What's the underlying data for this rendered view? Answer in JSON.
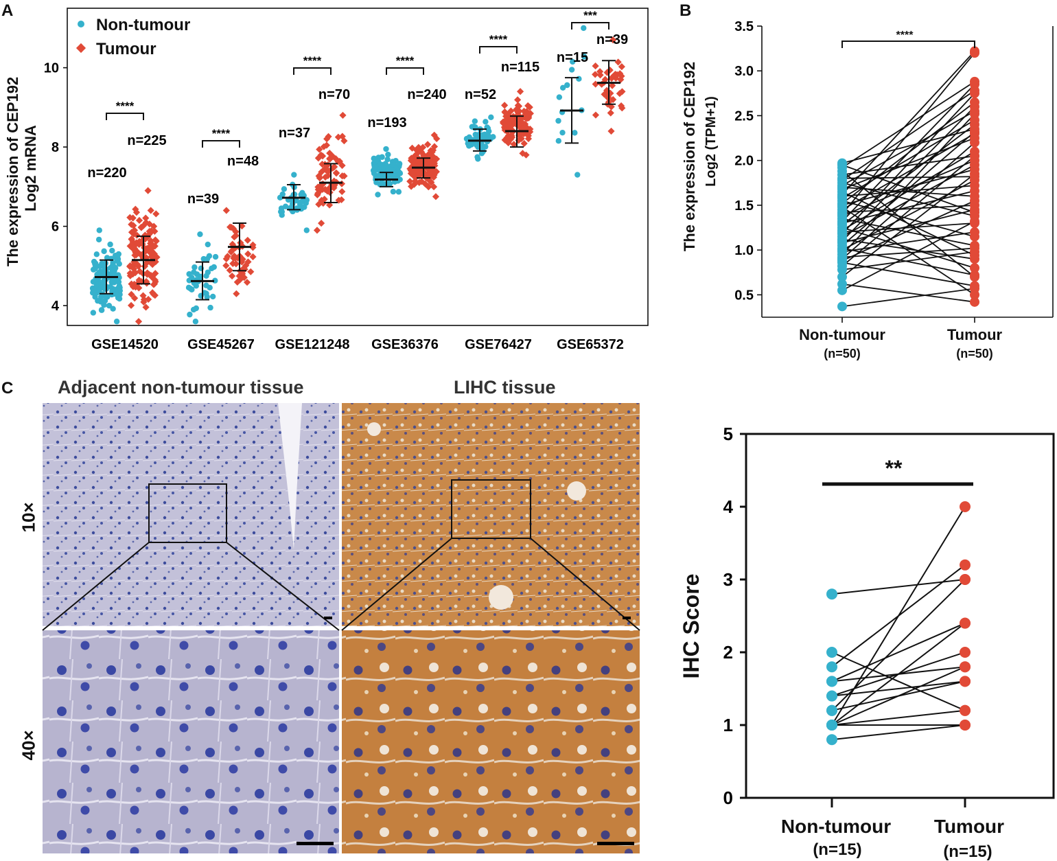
{
  "figure": {
    "panel_labels": {
      "a": "A",
      "b": "B",
      "c": "C"
    }
  },
  "colors": {
    "non_tumour": "#35b1cc",
    "tumour": "#e14a37",
    "ihc_blue_bg": "#bab9d3",
    "ihc_brown_bg": "#c88a4a",
    "ink": "#111111"
  },
  "chart_data": [
    {
      "id": "panel-a",
      "type": "scatter",
      "title": "",
      "ylabel_line1": "The expression of CEP192",
      "ylabel_line2": "Log2 mRNA",
      "xlabel": "",
      "ylim": [
        3.5,
        11.5
      ],
      "yticks": [
        4,
        6,
        8,
        10
      ],
      "legend": {
        "position": "top-left",
        "entries": [
          "Non-tumour",
          "Tumour"
        ]
      },
      "categories": [
        "GSE14520",
        "GSE45267",
        "GSE121248",
        "GSE36376",
        "GSE76427",
        "GSE65372"
      ],
      "series": [
        {
          "name": "Non-tumour",
          "marker": "circle",
          "n_labels": [
            "n=220",
            "n=39",
            "n=37",
            "n=193",
            "n=52",
            "n=15"
          ],
          "mean": [
            4.72,
            4.62,
            6.72,
            7.18,
            8.16,
            8.92
          ],
          "sd_low": [
            4.3,
            4.15,
            6.42,
            7.0,
            7.9,
            8.1
          ],
          "sd_high": [
            5.15,
            5.1,
            7.05,
            7.36,
            8.45,
            9.75
          ],
          "min": [
            3.6,
            3.6,
            5.9,
            6.8,
            7.7,
            7.3
          ],
          "max": [
            5.9,
            5.8,
            7.3,
            7.95,
            8.75,
            11.0
          ],
          "point_counts": [
            120,
            40,
            37,
            100,
            52,
            15
          ]
        },
        {
          "name": "Tumour",
          "marker": "diamond",
          "n_labels": [
            "n=225",
            "n=48",
            "n=70",
            "n=240",
            "n=115",
            "n=39"
          ],
          "mean": [
            5.15,
            5.48,
            7.1,
            7.48,
            8.4,
            9.62
          ],
          "sd_low": [
            4.55,
            4.88,
            6.6,
            7.22,
            8.0,
            9.08
          ],
          "sd_high": [
            5.75,
            6.08,
            7.58,
            7.72,
            8.78,
            10.18
          ],
          "min": [
            3.6,
            4.3,
            5.9,
            6.75,
            7.8,
            8.4
          ],
          "max": [
            6.9,
            6.4,
            8.8,
            8.3,
            9.4,
            10.7
          ],
          "point_counts": [
            140,
            48,
            70,
            120,
            115,
            39
          ]
        }
      ],
      "significance": [
        "****",
        "****",
        "****",
        "****",
        "****",
        "***"
      ]
    },
    {
      "id": "panel-b",
      "type": "line",
      "title": "",
      "ylabel_line1": "The expression of CEP192",
      "ylabel_line2": "Log2 (TPM+1)",
      "ylim": [
        0.25,
        3.5
      ],
      "yticks": [
        0.5,
        1.0,
        1.5,
        2.0,
        2.5,
        3.0,
        3.5
      ],
      "ytick_labels": [
        "0.5",
        "1.0",
        "1.5",
        "2.0",
        "2.5",
        "3.0",
        "3.5"
      ],
      "categories": [
        "Non-tumour",
        "Tumour"
      ],
      "category_n": [
        "(n=50)",
        "(n=50)"
      ],
      "significance": "****",
      "pairs": [
        [
          0.37,
          0.57
        ],
        [
          0.55,
          1.32
        ],
        [
          0.62,
          0.42
        ],
        [
          0.7,
          1.85
        ],
        [
          0.78,
          0.98
        ],
        [
          0.82,
          2.05
        ],
        [
          0.86,
          0.6
        ],
        [
          0.88,
          1.55
        ],
        [
          0.9,
          2.2
        ],
        [
          0.92,
          1.02
        ],
        [
          0.95,
          2.52
        ],
        [
          0.98,
          1.2
        ],
        [
          1.0,
          1.78
        ],
        [
          1.02,
          0.72
        ],
        [
          1.05,
          2.32
        ],
        [
          1.08,
          1.45
        ],
        [
          1.1,
          2.6
        ],
        [
          1.12,
          0.9
        ],
        [
          1.15,
          1.95
        ],
        [
          1.18,
          2.75
        ],
        [
          1.2,
          1.3
        ],
        [
          1.22,
          2.1
        ],
        [
          1.25,
          0.8
        ],
        [
          1.28,
          2.4
        ],
        [
          1.3,
          1.66
        ],
        [
          1.32,
          2.85
        ],
        [
          1.35,
          1.05
        ],
        [
          1.38,
          2.0
        ],
        [
          1.4,
          3.2
        ],
        [
          1.42,
          1.5
        ],
        [
          1.45,
          2.3
        ],
        [
          1.48,
          0.5
        ],
        [
          1.5,
          1.9
        ],
        [
          1.52,
          2.65
        ],
        [
          1.55,
          1.15
        ],
        [
          1.58,
          2.45
        ],
        [
          1.6,
          1.72
        ],
        [
          1.62,
          3.22
        ],
        [
          1.65,
          0.94
        ],
        [
          1.68,
          2.25
        ],
        [
          1.7,
          1.6
        ],
        [
          1.72,
          2.55
        ],
        [
          1.75,
          1.38
        ],
        [
          1.78,
          2.78
        ],
        [
          1.8,
          1.82
        ],
        [
          1.84,
          2.05
        ],
        [
          1.88,
          0.7
        ],
        [
          1.92,
          2.88
        ],
        [
          1.95,
          1.42
        ],
        [
          1.97,
          2.35
        ]
      ]
    },
    {
      "id": "panel-c-plot",
      "type": "line",
      "title": "",
      "ylabel": "IHC Score",
      "ylim": [
        0,
        5
      ],
      "yticks": [
        0,
        1,
        2,
        3,
        4,
        5
      ],
      "categories": [
        "Non-tumour",
        "Tumour"
      ],
      "category_n": [
        "(n=15)",
        "(n=15)"
      ],
      "significance": "**",
      "pairs": [
        [
          0.8,
          1.0
        ],
        [
          1.0,
          4.0
        ],
        [
          1.0,
          2.4
        ],
        [
          1.0,
          1.8
        ],
        [
          1.0,
          1.2
        ],
        [
          1.0,
          1.0
        ],
        [
          1.2,
          3.0
        ],
        [
          1.2,
          1.6
        ],
        [
          1.4,
          2.0
        ],
        [
          1.4,
          1.6
        ],
        [
          1.6,
          2.4
        ],
        [
          1.6,
          1.8
        ],
        [
          1.8,
          3.2
        ],
        [
          2.0,
          1.2
        ],
        [
          2.8,
          3.0
        ]
      ]
    }
  ],
  "micrographs": {
    "header_left": "Adjacent non-tumour tissue",
    "header_right": "LIHC tissue",
    "row_labels": [
      "10×",
      "40×"
    ]
  }
}
